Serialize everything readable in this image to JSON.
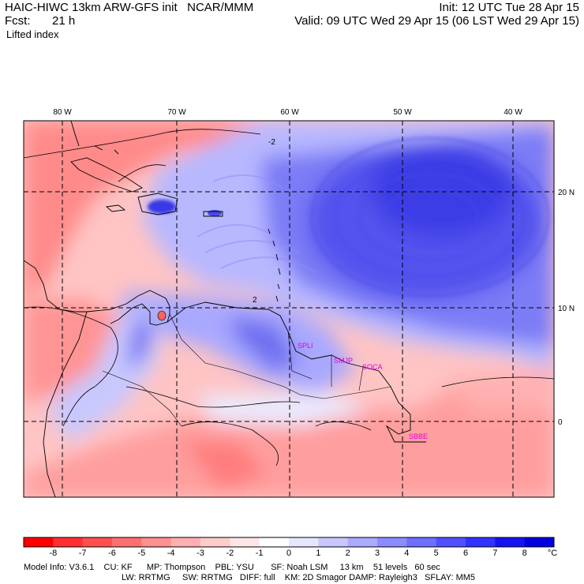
{
  "header": {
    "model_line": "HAIC-HIWC 13km ARW-GFS init   NCAR/MMM",
    "init_line": "Init: 12 UTC Tue 28 Apr 15",
    "fcst_label": "Fcst:",
    "fcst_value": "21 h",
    "valid_line": "Valid: 09 UTC Wed 29 Apr 15 (06 LST Wed 29 Apr 15)",
    "field_name": "Lifted index"
  },
  "map": {
    "lon_labels": [
      "80 W",
      "70 W",
      "60 W",
      "50 W",
      "40 W"
    ],
    "lat_labels": [
      "20 N",
      "10 N",
      "0"
    ],
    "stations": [
      "SPLI",
      "SMJP",
      "SOCA",
      "SBBE"
    ],
    "station_color": "#e000e0",
    "contour_labels": [
      "-2",
      "2"
    ]
  },
  "colorbar": {
    "labels": [
      "-8",
      "-7",
      "-6",
      "-5",
      "-4",
      "-3",
      "-2",
      "-1",
      "0",
      "1",
      "2",
      "3",
      "4",
      "5",
      "6",
      "7",
      "8"
    ],
    "unit": "°C",
    "colors": [
      "#ff0000",
      "#ff3030",
      "#ff5050",
      "#ff7070",
      "#ff9090",
      "#ffb0b0",
      "#ffcccc",
      "#ffe6e6",
      "#ffffff",
      "#e6e6ff",
      "#c8c8ff",
      "#aaaaff",
      "#8c8cff",
      "#6e6eff",
      "#5050ff",
      "#3232ff",
      "#1414f0",
      "#0000e0"
    ]
  },
  "footer": {
    "line1": "Model Info: V3.6.1    CU: KF      MP: Thompson    PBL: YSU       SF: Noah LSM     13 km    51 levels   60 sec",
    "line2": "LW: RRTMG     SW: RRTMG   DIFF: full    KM: 2D Smagor DAMP: Rayleigh3   SFLAY: MM5"
  }
}
